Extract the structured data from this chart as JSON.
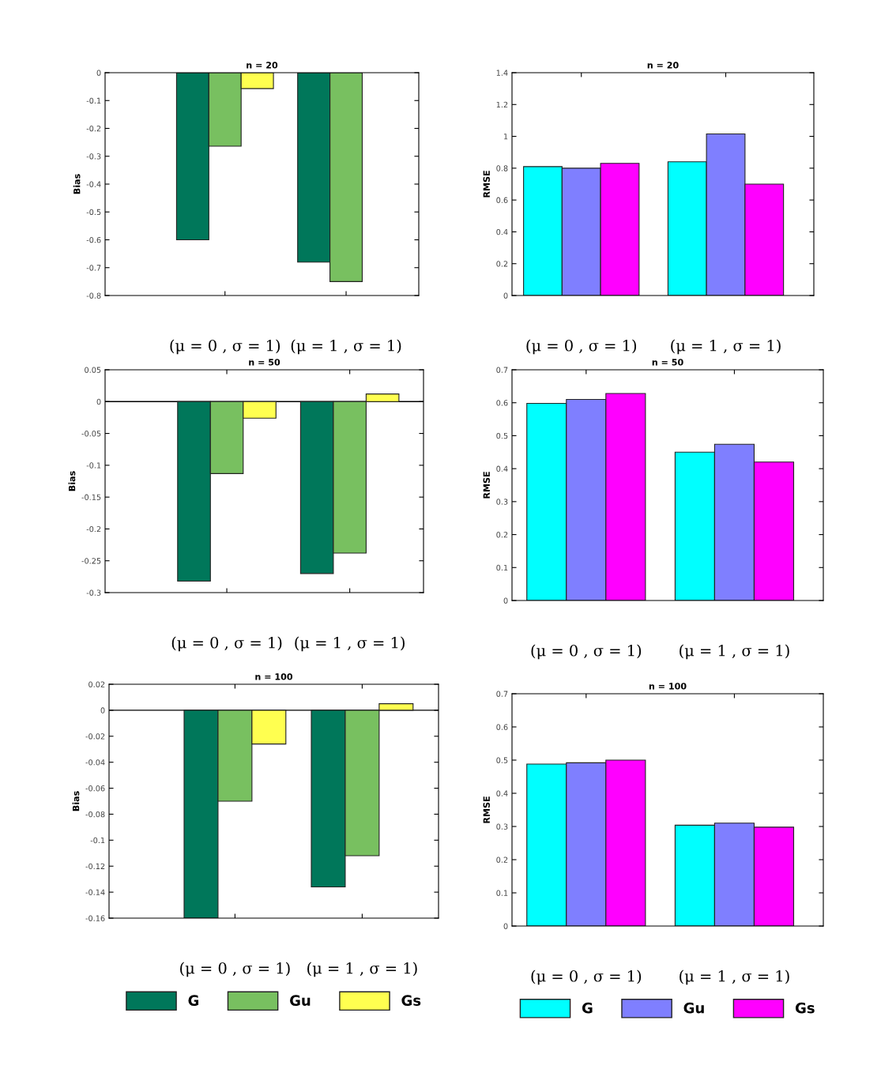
{
  "chart_data": [
    {
      "type": "bar",
      "title": "n = 20",
      "ylabel": "Bias",
      "categories": [
        "(μ = 0 , σ = 1)",
        "(μ = 1 , σ = 1)"
      ],
      "series": [
        {
          "color": "#00775a",
          "values": [
            -0.6,
            -0.68
          ]
        },
        {
          "color": "#78c060",
          "values": [
            -0.264,
            -0.75
          ]
        },
        {
          "color": "#ffff50",
          "values": [
            -0.057,
            null
          ]
        }
      ],
      "ylim": [
        -0.8,
        0
      ],
      "yticks": [
        -0.8,
        -0.7,
        -0.6,
        -0.5,
        -0.4,
        -0.3,
        -0.2,
        -0.1,
        0
      ],
      "grid": false,
      "legend": false
    },
    {
      "type": "bar",
      "title": "n = 20",
      "ylabel": "RMSE",
      "categories": [
        "(μ = 0 , σ = 1)",
        "(μ = 1 , σ = 1)"
      ],
      "series": [
        {
          "color": "#00ffff",
          "values": [
            0.81,
            0.84
          ]
        },
        {
          "color": "#7f7fff",
          "values": [
            0.8,
            1.015
          ]
        },
        {
          "color": "#ff00ff",
          "values": [
            0.83,
            0.7
          ]
        }
      ],
      "ylim": [
        0,
        1.4
      ],
      "yticks": [
        0,
        0.2,
        0.4,
        0.6,
        0.8,
        1,
        1.2,
        1.4
      ],
      "grid": false,
      "legend": false
    },
    {
      "type": "bar",
      "title": "n = 50",
      "ylabel": "Bias",
      "categories": [
        "(μ = 0 , σ = 1)",
        "(μ = 1 , σ = 1)"
      ],
      "series": [
        {
          "color": "#00775a",
          "values": [
            -0.282,
            -0.27
          ]
        },
        {
          "color": "#78c060",
          "values": [
            -0.113,
            -0.238
          ]
        },
        {
          "color": "#ffff50",
          "values": [
            -0.026,
            0.012
          ]
        }
      ],
      "ylim": [
        -0.3,
        0.05
      ],
      "yticks": [
        -0.3,
        -0.25,
        -0.2,
        -0.15,
        -0.1,
        -0.05,
        0,
        0.05
      ],
      "ref_lines": [
        {
          "axis": "y",
          "value": 0,
          "color": "#000000"
        }
      ],
      "grid": false,
      "legend": false
    },
    {
      "type": "bar",
      "title": "n = 50",
      "ylabel": "RMSE",
      "categories": [
        "(μ = 0 , σ = 1)",
        "(μ = 1 , σ = 1)"
      ],
      "series": [
        {
          "color": "#00ffff",
          "values": [
            0.598,
            0.45
          ]
        },
        {
          "color": "#7f7fff",
          "values": [
            0.61,
            0.474
          ]
        },
        {
          "color": "#ff00ff",
          "values": [
            0.628,
            0.42
          ]
        }
      ],
      "ylim": [
        0,
        0.7
      ],
      "yticks": [
        0,
        0.1,
        0.2,
        0.3,
        0.4,
        0.5,
        0.6,
        0.7
      ],
      "grid": false,
      "legend": false
    },
    {
      "type": "bar",
      "title": "n = 100",
      "ylabel": "Bias",
      "categories": [
        "(μ = 0 , σ = 1)",
        "(μ = 1 , σ = 1)"
      ],
      "series": [
        {
          "name": "G",
          "color": "#00775a",
          "values": [
            -0.16,
            -0.136
          ]
        },
        {
          "name": "Gu",
          "color": "#78c060",
          "values": [
            -0.07,
            -0.112
          ]
        },
        {
          "name": "Gs",
          "color": "#ffff50",
          "values": [
            -0.026,
            0.005
          ]
        }
      ],
      "ylim": [
        -0.16,
        0.02
      ],
      "yticks": [
        -0.16,
        -0.14,
        -0.12,
        -0.1,
        -0.08,
        -0.06,
        -0.04,
        -0.02,
        0,
        0.02
      ],
      "ref_lines": [
        {
          "axis": "y",
          "value": 0,
          "color": "#000000"
        }
      ],
      "grid": false,
      "legend": "bottom"
    },
    {
      "type": "bar",
      "title": "n = 100",
      "ylabel": "RMSE",
      "categories": [
        "(μ = 0 , σ = 1)",
        "(μ = 1 , σ = 1)"
      ],
      "series": [
        {
          "name": "G",
          "color": "#00ffff",
          "values": [
            0.488,
            0.304
          ]
        },
        {
          "name": "Gu",
          "color": "#7f7fff",
          "values": [
            0.492,
            0.31
          ]
        },
        {
          "name": "Gs",
          "color": "#ff00ff",
          "values": [
            0.5,
            0.298
          ]
        }
      ],
      "ylim": [
        0,
        0.7
      ],
      "yticks": [
        0,
        0.1,
        0.2,
        0.3,
        0.4,
        0.5,
        0.6,
        0.7
      ],
      "grid": false,
      "legend": "bottom"
    }
  ]
}
